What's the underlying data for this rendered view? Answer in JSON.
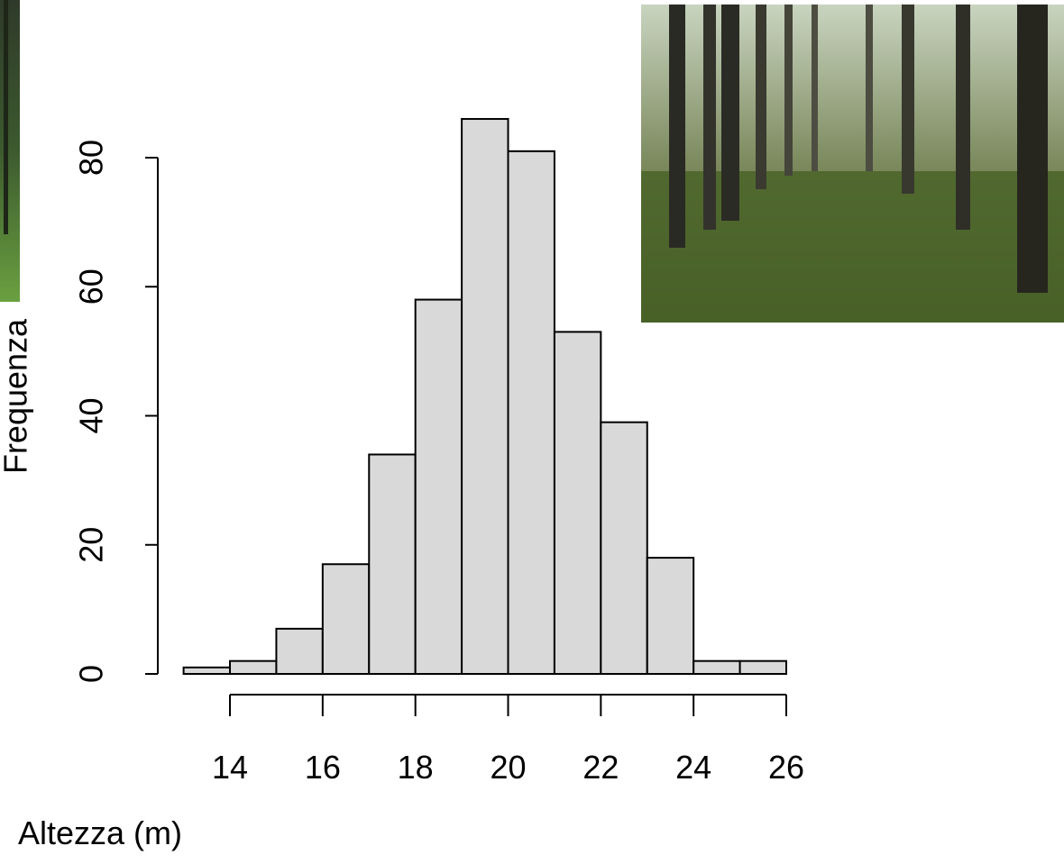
{
  "chart_data": {
    "type": "histogram",
    "x_label": "Altezza (m)",
    "y_label": "Frequenza",
    "bins": [
      13,
      14,
      15,
      16,
      17,
      18,
      19,
      20,
      21,
      22,
      23,
      24,
      25,
      26
    ],
    "values": [
      1,
      2,
      7,
      17,
      34,
      58,
      86,
      81,
      53,
      39,
      18,
      2,
      2
    ],
    "color": "#d9d9d9",
    "xlim": [
      13,
      26
    ],
    "xticks": [
      14,
      16,
      18,
      20,
      22,
      24,
      26
    ],
    "ylim": [
      0,
      80
    ],
    "yticks": [
      0,
      20,
      40,
      60,
      80
    ]
  }
}
